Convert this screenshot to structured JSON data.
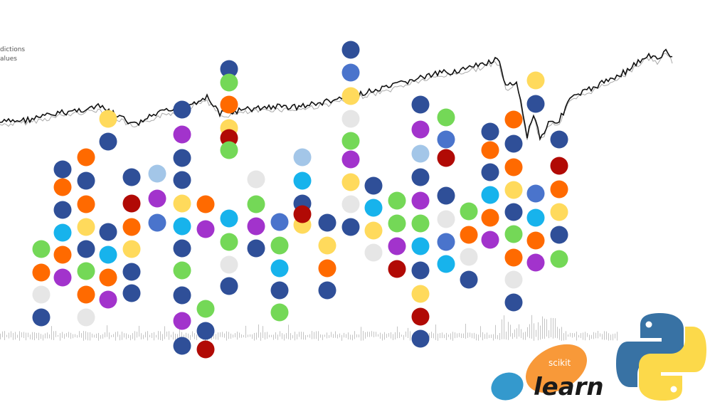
{
  "legend": {
    "line1": "dictions",
    "line2": "alues"
  },
  "colors": {
    "navy": "#2f4f98",
    "blue": "#4a74cc",
    "light_blue": "#a3c6e8",
    "cyan": "#17b3ec",
    "green": "#74d857",
    "orange": "#ff6a00",
    "yellow": "#ffda5c",
    "purple": "#a233cc",
    "red": "#b10a05",
    "gray": "#e6e6e6",
    "sklearn_orange": "#f89939",
    "sklearn_blue": "#3499cd",
    "python_blue": "#3872a4",
    "python_yellow": "#fcd94a"
  },
  "logos": {
    "sklearn_small": "scikit",
    "sklearn_big": "learn"
  },
  "icons": [
    "scikit-learn-logo",
    "python-logo"
  ]
}
